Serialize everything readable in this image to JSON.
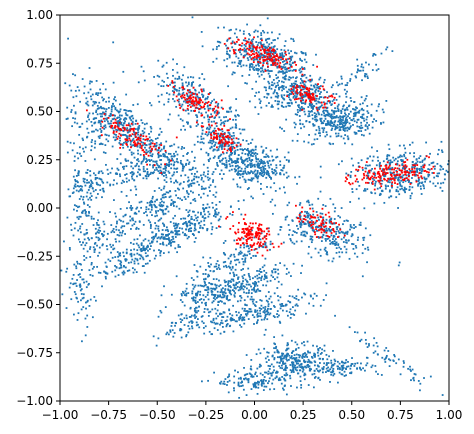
{
  "chart_data": {
    "type": "scatter",
    "title": "",
    "xlabel": "",
    "ylabel": "",
    "xlim": [
      -1.0,
      1.0
    ],
    "ylim": [
      -1.0,
      1.0
    ],
    "grid": false,
    "legend": "none",
    "x_ticks": [
      "−1.00",
      "−0.75",
      "−0.50",
      "−0.25",
      "0.00",
      "0.25",
      "0.50",
      "0.75",
      "1.00"
    ],
    "y_ticks": [
      "1.00",
      "0.75",
      "0.50",
      "0.25",
      "0.00",
      "−0.25",
      "−0.50",
      "−0.75",
      "−1.00"
    ],
    "series": [
      {
        "color": "#1f77b4",
        "clusters": [
          {
            "cx": 0.05,
            "cy": 0.78,
            "sx": 0.12,
            "sy": 0.06,
            "angle": -20,
            "n": 420
          },
          {
            "cx": 0.27,
            "cy": 0.57,
            "sx": 0.09,
            "sy": 0.05,
            "angle": -20,
            "n": 260
          },
          {
            "cx": 0.43,
            "cy": 0.45,
            "sx": 0.1,
            "sy": 0.05,
            "angle": 10,
            "n": 320
          },
          {
            "cx": -0.3,
            "cy": 0.55,
            "sx": 0.14,
            "sy": 0.05,
            "angle": -35,
            "n": 260
          },
          {
            "cx": -0.17,
            "cy": 0.34,
            "sx": 0.08,
            "sy": 0.04,
            "angle": -30,
            "n": 160
          },
          {
            "cx": -0.02,
            "cy": 0.22,
            "sx": 0.09,
            "sy": 0.05,
            "angle": -10,
            "n": 300
          },
          {
            "cx": -0.62,
            "cy": 0.38,
            "sx": 0.18,
            "sy": 0.05,
            "angle": -35,
            "n": 360
          },
          {
            "cx": -0.8,
            "cy": 0.45,
            "sx": 0.08,
            "sy": 0.12,
            "angle": 0,
            "n": 140
          },
          {
            "cx": -0.58,
            "cy": 0.2,
            "sx": 0.16,
            "sy": 0.04,
            "angle": 15,
            "n": 200
          },
          {
            "cx": -0.88,
            "cy": 0.12,
            "sx": 0.04,
            "sy": 0.12,
            "angle": 0,
            "n": 90
          },
          {
            "cx": -0.52,
            "cy": 0.0,
            "sx": 0.2,
            "sy": 0.05,
            "angle": 30,
            "n": 280
          },
          {
            "cx": -0.38,
            "cy": -0.12,
            "sx": 0.18,
            "sy": 0.04,
            "angle": 30,
            "n": 260
          },
          {
            "cx": -0.84,
            "cy": -0.15,
            "sx": 0.05,
            "sy": 0.14,
            "angle": 0,
            "n": 100
          },
          {
            "cx": -0.62,
            "cy": -0.25,
            "sx": 0.18,
            "sy": 0.03,
            "angle": 30,
            "n": 120
          },
          {
            "cx": -0.12,
            "cy": -0.28,
            "sx": 0.16,
            "sy": 0.04,
            "angle": 30,
            "n": 160
          },
          {
            "cx": -0.9,
            "cy": -0.45,
            "sx": 0.03,
            "sy": 0.1,
            "angle": 0,
            "n": 50
          },
          {
            "cx": 0.0,
            "cy": -0.38,
            "sx": 0.1,
            "sy": 0.03,
            "angle": 15,
            "n": 110
          },
          {
            "cx": -0.16,
            "cy": -0.43,
            "sx": 0.12,
            "sy": 0.03,
            "angle": 12,
            "n": 170
          },
          {
            "cx": 0.0,
            "cy": -0.54,
            "sx": 0.16,
            "sy": 0.035,
            "angle": 15,
            "n": 230
          },
          {
            "cx": -0.34,
            "cy": -0.58,
            "sx": 0.1,
            "sy": 0.03,
            "angle": 30,
            "n": 80
          },
          {
            "cx": 0.2,
            "cy": -0.8,
            "sx": 0.1,
            "sy": 0.05,
            "angle": 0,
            "n": 280
          },
          {
            "cx": 0.42,
            "cy": -0.82,
            "sx": 0.12,
            "sy": 0.025,
            "angle": 0,
            "n": 120
          },
          {
            "cx": 0.0,
            "cy": -0.9,
            "sx": 0.1,
            "sy": 0.03,
            "angle": 0,
            "n": 120
          },
          {
            "cx": 0.7,
            "cy": -0.78,
            "sx": 0.12,
            "sy": 0.02,
            "angle": -35,
            "n": 60
          },
          {
            "cx": 0.35,
            "cy": -0.12,
            "sx": 0.12,
            "sy": 0.06,
            "angle": -25,
            "n": 300
          },
          {
            "cx": 0.77,
            "cy": 0.18,
            "sx": 0.14,
            "sy": 0.06,
            "angle": 5,
            "n": 380
          },
          {
            "cx": 0.12,
            "cy": 0.6,
            "sx": 0.1,
            "sy": 0.03,
            "angle": 25,
            "n": 80
          },
          {
            "cx": 0.52,
            "cy": 0.7,
            "sx": 0.08,
            "sy": 0.03,
            "angle": 40,
            "n": 50
          }
        ]
      },
      {
        "color": "#ff0000",
        "clusters": [
          {
            "cx": 0.03,
            "cy": 0.8,
            "sx": 0.09,
            "sy": 0.03,
            "angle": -20,
            "n": 140
          },
          {
            "cx": 0.29,
            "cy": 0.58,
            "sx": 0.05,
            "sy": 0.03,
            "angle": -20,
            "n": 90
          },
          {
            "cx": -0.3,
            "cy": 0.55,
            "sx": 0.07,
            "sy": 0.03,
            "angle": -35,
            "n": 100
          },
          {
            "cx": -0.17,
            "cy": 0.36,
            "sx": 0.05,
            "sy": 0.025,
            "angle": -30,
            "n": 70
          },
          {
            "cx": -0.63,
            "cy": 0.37,
            "sx": 0.1,
            "sy": 0.03,
            "angle": -35,
            "n": 110
          },
          {
            "cx": -0.02,
            "cy": -0.14,
            "sx": 0.06,
            "sy": 0.035,
            "angle": -20,
            "n": 140
          },
          {
            "cx": 0.33,
            "cy": -0.08,
            "sx": 0.06,
            "sy": 0.03,
            "angle": -25,
            "n": 70
          },
          {
            "cx": 0.7,
            "cy": 0.18,
            "sx": 0.1,
            "sy": 0.03,
            "angle": 5,
            "n": 160
          }
        ]
      }
    ]
  }
}
